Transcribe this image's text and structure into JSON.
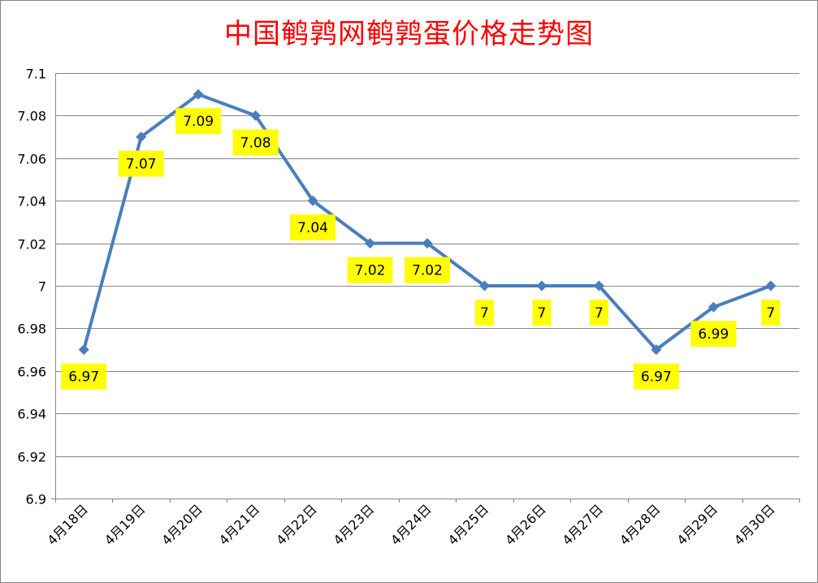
{
  "chart_data": {
    "type": "line",
    "title": "中国鹌鹑网鹌鹑蛋价格走势图",
    "categories": [
      "4月18日",
      "4月19日",
      "4月20日",
      "4月21日",
      "4月22日",
      "4月23日",
      "4月24日",
      "4月25日",
      "4月26日",
      "4月27日",
      "4月28日",
      "4月29日",
      "4月30日"
    ],
    "series": [
      {
        "values": [
          6.97,
          7.07,
          7.09,
          7.08,
          7.04,
          7.02,
          7.02,
          7,
          7,
          7,
          6.97,
          6.99,
          7
        ],
        "labels": [
          "6.97",
          "7.07",
          "7.09",
          "7.08",
          "7.04",
          "7.02",
          "7.02",
          "7",
          "7",
          "7",
          "6.97",
          "6.99",
          "7"
        ]
      }
    ],
    "ylim": [
      6.9,
      7.1
    ],
    "yticks": [
      "6.9",
      "6.92",
      "6.94",
      "6.96",
      "6.98",
      "7",
      "7.02",
      "7.04",
      "7.06",
      "7.08",
      "7.1"
    ],
    "grid": true,
    "legend": "none",
    "colors": {
      "line": "#4a7ebb",
      "label_bg": "#ffff00",
      "title": "#ff0000",
      "grid": "#868686"
    }
  }
}
